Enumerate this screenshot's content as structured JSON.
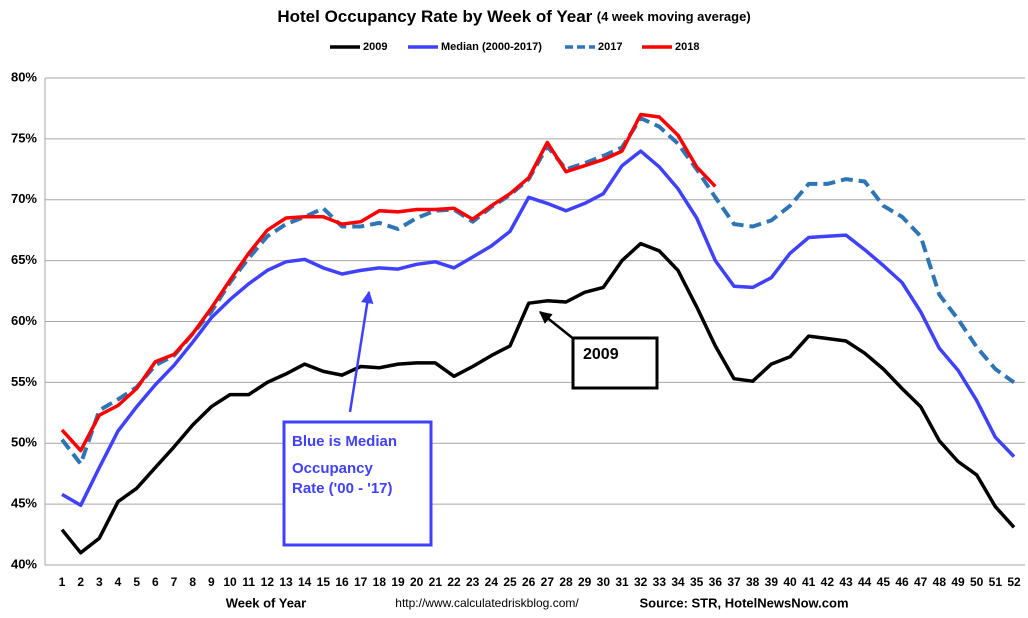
{
  "chart_data": {
    "type": "line",
    "title": "Hotel Occupancy Rate by  Week of Year",
    "subtitle": "(4 week moving average)",
    "x_label": "Week of Year",
    "url": "http://www.calculatedriskblog.com/",
    "source": "Source: STR, HotelNewsNow.com",
    "annotations": {
      "box_2009": "2009",
      "median_note": [
        "Blue is Median",
        "Occupancy",
        "Rate ('00 - '17)"
      ]
    },
    "categories": [
      1,
      2,
      3,
      4,
      5,
      6,
      7,
      8,
      9,
      10,
      11,
      12,
      13,
      14,
      15,
      16,
      17,
      18,
      19,
      20,
      21,
      22,
      23,
      24,
      25,
      26,
      27,
      28,
      29,
      30,
      31,
      32,
      33,
      34,
      35,
      36,
      37,
      38,
      39,
      40,
      41,
      42,
      43,
      44,
      45,
      46,
      47,
      48,
      49,
      50,
      51,
      52
    ],
    "ylim": [
      40,
      80
    ],
    "yticks": [
      {
        "value": 40,
        "label": "40%"
      },
      {
        "value": 45,
        "label": "45%"
      },
      {
        "value": 50,
        "label": "50%"
      },
      {
        "value": 55,
        "label": "55%"
      },
      {
        "value": 60,
        "label": "60%"
      },
      {
        "value": 65,
        "label": "65%"
      },
      {
        "value": 70,
        "label": "70%"
      },
      {
        "value": 75,
        "label": "75%"
      },
      {
        "value": 80,
        "label": "80%"
      }
    ],
    "grid": true,
    "legend": "top",
    "series": [
      {
        "name": "2009",
        "color": "#000000",
        "style": "solid",
        "values": [
          42.9,
          41.0,
          42.2,
          45.2,
          46.3,
          48.0,
          49.7,
          51.5,
          53.0,
          54.0,
          54.0,
          55.0,
          55.7,
          56.5,
          55.9,
          55.6,
          56.3,
          56.2,
          56.5,
          56.6,
          56.6,
          55.5,
          56.3,
          57.2,
          58.0,
          61.5,
          61.7,
          61.6,
          62.4,
          62.8,
          65.0,
          66.4,
          65.8,
          64.2,
          61.2,
          58.0,
          55.3,
          55.1,
          56.5,
          57.1,
          58.8,
          58.6,
          58.4,
          57.4,
          56.1,
          54.5,
          53.0,
          50.2,
          48.5,
          47.4,
          44.8,
          43.1
        ]
      },
      {
        "name": "Median (2000-2017)",
        "color": "#4040ff",
        "style": "solid",
        "values": [
          45.8,
          44.9,
          48.0,
          51.0,
          53.0,
          54.8,
          56.4,
          58.3,
          60.3,
          61.8,
          63.1,
          64.2,
          64.9,
          65.1,
          64.4,
          63.9,
          64.2,
          64.4,
          64.3,
          64.7,
          64.9,
          64.4,
          65.3,
          66.2,
          67.4,
          70.2,
          69.7,
          69.1,
          69.7,
          70.5,
          72.8,
          74.0,
          72.7,
          70.9,
          68.5,
          65.0,
          62.9,
          62.8,
          63.6,
          65.6,
          66.9,
          67.0,
          67.1,
          65.9,
          64.6,
          63.2,
          60.8,
          57.8,
          56.0,
          53.5,
          50.5,
          48.9
        ]
      },
      {
        "name": "2017",
        "color": "#2e75b6",
        "style": "dashed",
        "values": [
          50.3,
          48.3,
          52.7,
          53.6,
          54.6,
          56.4,
          57.2,
          59.0,
          60.8,
          63.2,
          65.2,
          67.0,
          68.0,
          68.6,
          69.3,
          67.8,
          67.8,
          68.1,
          67.6,
          68.5,
          69.1,
          69.2,
          68.2,
          69.4,
          70.4,
          71.7,
          74.4,
          72.5,
          73.0,
          73.6,
          74.3,
          76.7,
          76.0,
          74.6,
          72.5,
          70.2,
          68.0,
          67.8,
          68.3,
          69.5,
          71.3,
          71.3,
          71.7,
          71.5,
          69.5,
          68.6,
          67.0,
          62.2,
          60.2,
          57.9,
          56.1,
          55.0
        ]
      },
      {
        "name": "2018",
        "color": "#ff0000",
        "style": "solid",
        "values": [
          51.1,
          49.4,
          52.3,
          53.1,
          54.5,
          56.7,
          57.3,
          59.0,
          61.1,
          63.4,
          65.6,
          67.5,
          68.5,
          68.6,
          68.6,
          68.0,
          68.2,
          69.1,
          69.0,
          69.2,
          69.2,
          69.3,
          68.4,
          69.5,
          70.5,
          71.8,
          74.7,
          72.3,
          72.8,
          73.3,
          74.0,
          77.0,
          76.8,
          75.3,
          72.7,
          71.1,
          null,
          null,
          null,
          null,
          null,
          null,
          null,
          null,
          null,
          null,
          null,
          null,
          null,
          null,
          null,
          null
        ]
      }
    ]
  }
}
